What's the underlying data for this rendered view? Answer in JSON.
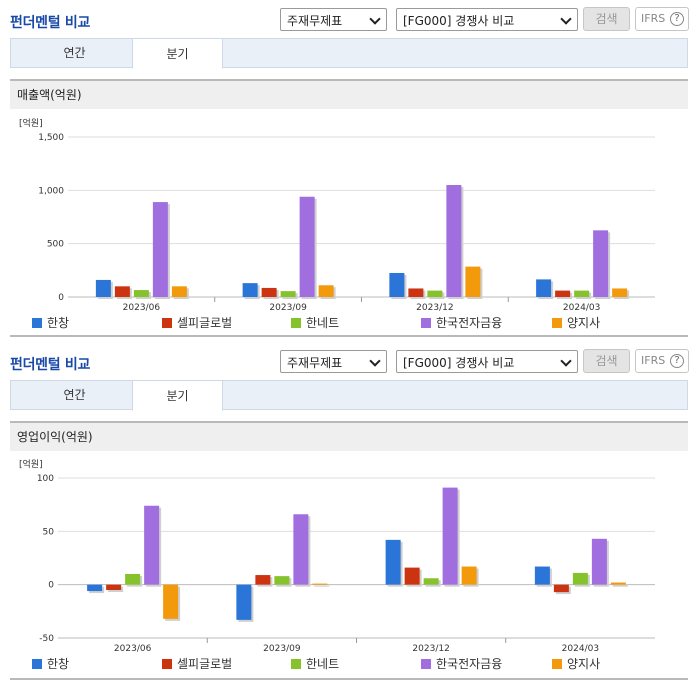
{
  "sections": [
    {
      "title": "펀더멘털 비교",
      "select_statement": "주재무제표",
      "select_compare": "[FG000] 경쟁사 비교",
      "search_label": "검색",
      "ifrs_label": "IFRS",
      "ifrs_help": "?",
      "tabs": [
        {
          "label": "연간"
        },
        {
          "label": "분기"
        }
      ],
      "active_tab": 1,
      "metric_label": "매출액(억원)"
    },
    {
      "title": "펀더멘털 비교",
      "select_statement": "주재무제표",
      "select_compare": "[FG000] 경쟁사 비교",
      "search_label": "검색",
      "ifrs_label": "IFRS",
      "ifrs_help": "?",
      "tabs": [
        {
          "label": "연간"
        },
        {
          "label": "분기"
        }
      ],
      "active_tab": 1,
      "metric_label": "영업이익(억원)"
    }
  ],
  "chart_data": [
    {
      "type": "bar",
      "unit_label": "[억원]",
      "categories": [
        "2023/06",
        "2023/09",
        "2023/12",
        "2024/03"
      ],
      "ylim": [
        0,
        1500
      ],
      "yticks": [
        0,
        500,
        1000,
        1500
      ],
      "ytick_labels": [
        "0",
        "500",
        "1,000",
        "1,500"
      ],
      "grid": true,
      "legend_position": "bottom",
      "series": [
        {
          "name": "한창",
          "color": "#2b74d8",
          "values": [
            160,
            130,
            225,
            165
          ]
        },
        {
          "name": "셀피글로벌",
          "color": "#cc3311",
          "values": [
            100,
            85,
            80,
            60
          ]
        },
        {
          "name": "한네트",
          "color": "#86c22b",
          "values": [
            65,
            55,
            60,
            60
          ]
        },
        {
          "name": "한국전자금융",
          "color": "#a16ee0",
          "values": [
            890,
            940,
            1050,
            625
          ]
        },
        {
          "name": "양지사",
          "color": "#f29a0b",
          "values": [
            100,
            110,
            285,
            80
          ]
        }
      ]
    },
    {
      "type": "bar",
      "unit_label": "[억원]",
      "categories": [
        "2023/06",
        "2023/09",
        "2023/12",
        "2024/03"
      ],
      "ylim": [
        -50,
        100
      ],
      "yticks": [
        -50,
        0,
        50,
        100
      ],
      "ytick_labels": [
        "-50",
        "0",
        "50",
        "100"
      ],
      "grid": true,
      "legend_position": "bottom",
      "series": [
        {
          "name": "한창",
          "color": "#2b74d8",
          "values": [
            -6,
            -33,
            42,
            17
          ]
        },
        {
          "name": "셀피글로벌",
          "color": "#cc3311",
          "values": [
            -5,
            9,
            16,
            -7
          ]
        },
        {
          "name": "한네트",
          "color": "#86c22b",
          "values": [
            10,
            8,
            6,
            11
          ]
        },
        {
          "name": "한국전자금융",
          "color": "#a16ee0",
          "values": [
            74,
            66,
            91,
            43
          ]
        },
        {
          "name": "양지사",
          "color": "#f29a0b",
          "values": [
            -32,
            1,
            17,
            2
          ]
        }
      ]
    }
  ]
}
